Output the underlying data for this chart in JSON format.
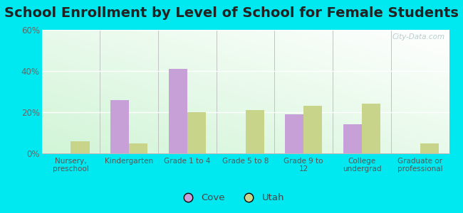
{
  "title": "School Enrollment by Level of School for Female Students",
  "categories": [
    "Nursery,\npreschool",
    "Kindergarten",
    "Grade 1 to 4",
    "Grade 5 to 8",
    "Grade 9 to\n12",
    "College\nundergrad",
    "Graduate or\nprofessional"
  ],
  "cove_values": [
    0,
    26,
    41,
    0,
    19,
    14,
    0
  ],
  "utah_values": [
    6,
    5,
    20,
    21,
    23,
    24,
    5
  ],
  "cove_color": "#c8a0d8",
  "utah_color": "#c8d48a",
  "ylim": [
    0,
    60
  ],
  "yticks": [
    0,
    20,
    40,
    60
  ],
  "ytick_labels": [
    "0%",
    "20%",
    "40%",
    "60%"
  ],
  "outer_background": "#00e8f0",
  "title_fontsize": 14,
  "watermark": "City-Data.com",
  "legend_labels": [
    "Cove",
    "Utah"
  ],
  "bar_width": 0.32
}
